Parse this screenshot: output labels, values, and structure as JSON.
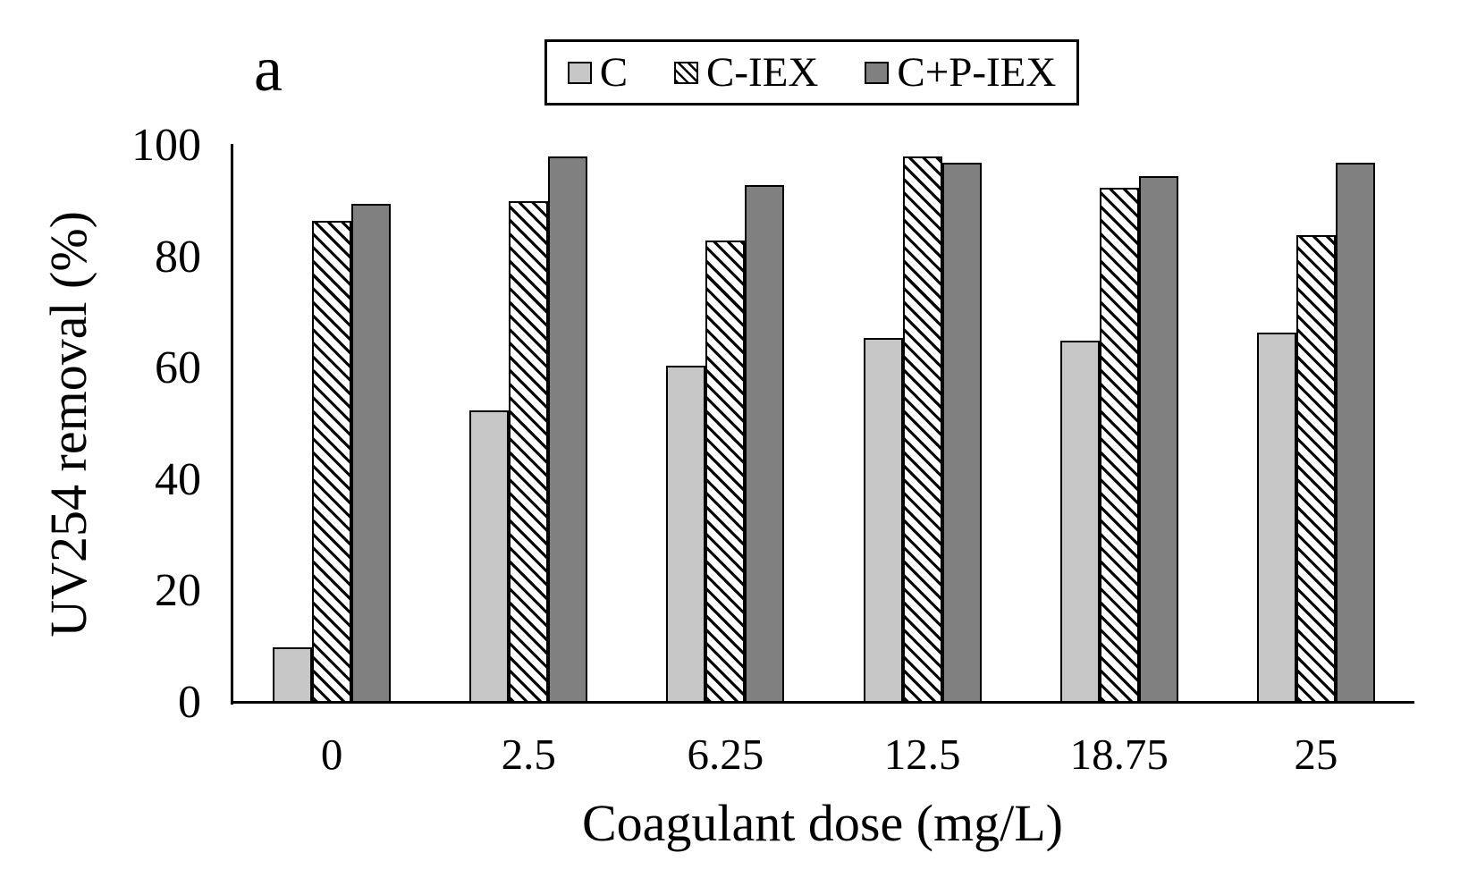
{
  "panel_label": "a",
  "colors": {
    "background": "#ffffff",
    "axis": "#000000",
    "bar_border": "#000000",
    "text": "#000000",
    "series_c_fill": "#c7c7c7",
    "series_c_iex_hatch_stripe": "#000000",
    "series_c_iex_background": "#ffffff",
    "series_c_p_iex_fill": "#808080"
  },
  "chart_data": {
    "type": "bar",
    "title": "",
    "categories": [
      "0",
      "2.5",
      "6.25",
      "12.5",
      "18.75",
      "25"
    ],
    "series": [
      {
        "name": "C",
        "pattern": "solid",
        "fill": "#c7c7c7",
        "values": [
          10,
          52.5,
          60.5,
          65.5,
          65,
          66.5
        ]
      },
      {
        "name": "C-IEX",
        "pattern": "diagonal-hatch",
        "fill": "#ffffff",
        "values": [
          86.5,
          90,
          83,
          98,
          92.5,
          84
        ]
      },
      {
        "name": "C+P-IEX",
        "pattern": "solid",
        "fill": "#808080",
        "values": [
          89.5,
          98,
          93,
          97,
          94.5,
          97
        ]
      }
    ],
    "xlabel": "Coagulant dose (mg/L)",
    "ylabel": "UV254 removal (%)",
    "ylim": [
      0,
      100
    ],
    "yticks": [
      "100",
      "80",
      "60",
      "40",
      "20",
      "0"
    ],
    "grid": false,
    "legend_position": "top-center"
  }
}
